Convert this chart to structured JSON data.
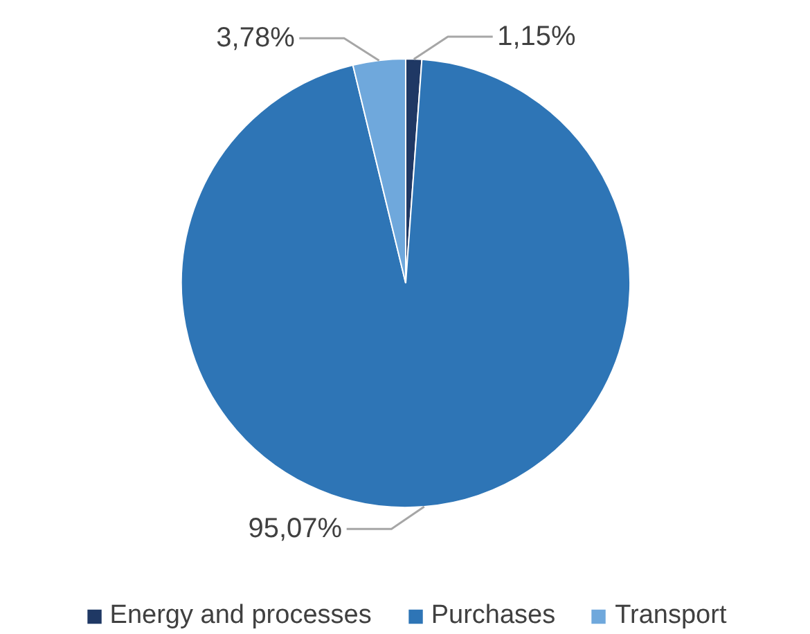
{
  "chart_data": {
    "type": "pie",
    "categories": [
      "Energy and processes",
      "Purchases",
      "Transport"
    ],
    "values": [
      1.15,
      95.07,
      3.78
    ],
    "colors": [
      "#1f3864",
      "#2e75b6",
      "#6fa8dc"
    ],
    "value_labels": [
      "1,15%",
      "95,07%",
      "3,78%"
    ],
    "legend": "bottom"
  }
}
